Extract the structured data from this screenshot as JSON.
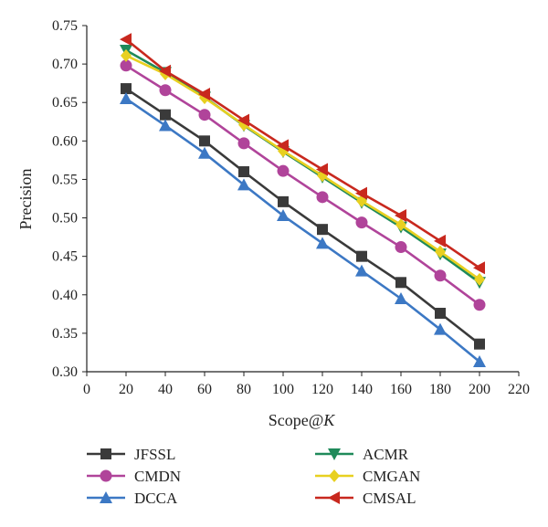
{
  "chart_data": {
    "type": "line",
    "title": "",
    "xlabel": "Scope@",
    "xlabel_italic": "K",
    "ylabel": "Precision",
    "xlim": [
      0,
      220
    ],
    "ylim": [
      0.3,
      0.75
    ],
    "xticks": [
      "0",
      "20",
      "40",
      "60",
      "80",
      "100",
      "120",
      "140",
      "160",
      "180",
      "200",
      "220"
    ],
    "yticks": [
      "0.30",
      "0.35",
      "0.40",
      "0.45",
      "0.50",
      "0.55",
      "0.60",
      "0.65",
      "0.70",
      "0.75"
    ],
    "grid": false,
    "legend_position": "bottom",
    "x": [
      20,
      40,
      60,
      80,
      100,
      120,
      140,
      160,
      180,
      200
    ],
    "series": [
      {
        "name": "JFSSL",
        "color": "#3a3a3a",
        "marker": "square",
        "values": [
          0.668,
          0.634,
          0.6,
          0.56,
          0.521,
          0.485,
          0.45,
          0.416,
          0.376,
          0.336
        ]
      },
      {
        "name": "CMDN",
        "color": "#b0449a",
        "marker": "circle",
        "values": [
          0.698,
          0.666,
          0.634,
          0.597,
          0.561,
          0.527,
          0.494,
          0.462,
          0.425,
          0.387
        ]
      },
      {
        "name": "DCCA",
        "color": "#3c78c4",
        "marker": "triangle-up",
        "values": [
          0.655,
          0.62,
          0.584,
          0.543,
          0.503,
          0.467,
          0.431,
          0.395,
          0.355,
          0.313
        ]
      },
      {
        "name": "ACMR",
        "color": "#1f8a5a",
        "marker": "triangle-down",
        "values": [
          0.718,
          0.689,
          0.657,
          0.62,
          0.586,
          0.553,
          0.52,
          0.488,
          0.453,
          0.416
        ]
      },
      {
        "name": "CMGAN",
        "color": "#e8d020",
        "marker": "diamond",
        "values": [
          0.711,
          0.687,
          0.656,
          0.621,
          0.587,
          0.555,
          0.522,
          0.491,
          0.456,
          0.42
        ]
      },
      {
        "name": "CMSAL",
        "color": "#c8281e",
        "marker": "triangle-left",
        "values": [
          0.732,
          0.691,
          0.661,
          0.627,
          0.594,
          0.563,
          0.532,
          0.503,
          0.47,
          0.435
        ]
      }
    ]
  }
}
